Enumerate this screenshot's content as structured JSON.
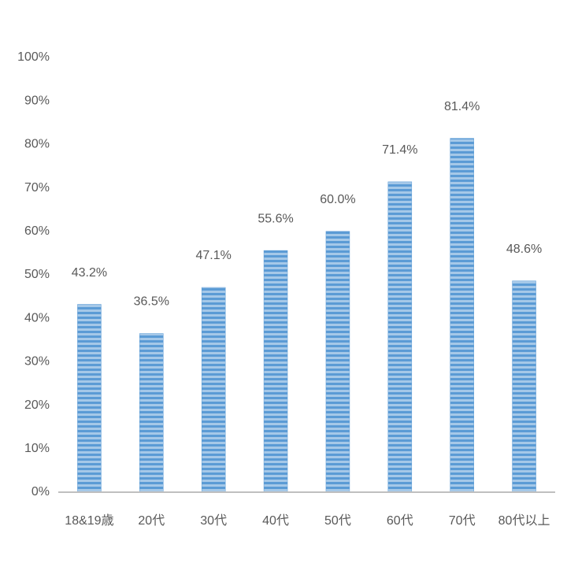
{
  "chart_data": {
    "type": "bar",
    "categories": [
      "18&19歳",
      "20代",
      "30代",
      "40代",
      "50代",
      "60代",
      "70代",
      "80代以上"
    ],
    "values": [
      43.2,
      36.5,
      47.1,
      55.6,
      60.0,
      71.4,
      81.4,
      48.6
    ],
    "value_labels": [
      "43.2%",
      "36.5%",
      "47.1%",
      "55.6%",
      "60.0%",
      "71.4%",
      "81.4%",
      "48.6%"
    ],
    "color": "#5b9bd5",
    "ylim": [
      0,
      100
    ],
    "yticks": [
      {
        "value": 0,
        "label": "0%"
      },
      {
        "value": 10,
        "label": "10%"
      },
      {
        "value": 20,
        "label": "20%"
      },
      {
        "value": 30,
        "label": "30%"
      },
      {
        "value": 40,
        "label": "40%"
      },
      {
        "value": 50,
        "label": "50%"
      },
      {
        "value": 60,
        "label": "60%"
      },
      {
        "value": 70,
        "label": "70%"
      },
      {
        "value": 80,
        "label": "80%"
      },
      {
        "value": 90,
        "label": "90%"
      },
      {
        "value": 100,
        "label": "100%"
      }
    ],
    "grid": false
  }
}
